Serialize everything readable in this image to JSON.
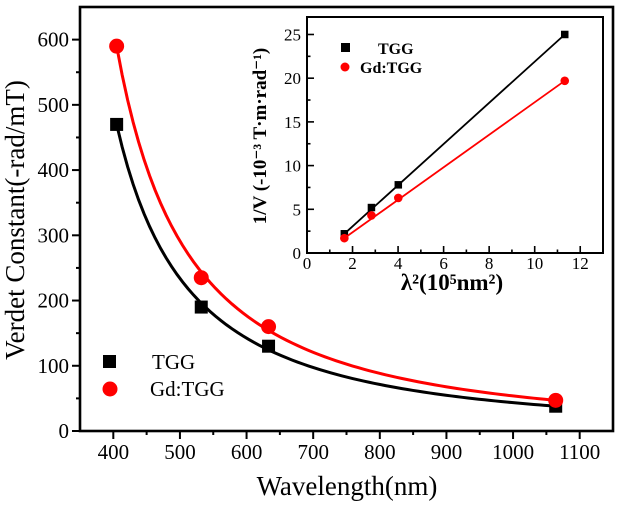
{
  "figure": {
    "background": "#ffffff",
    "series_black": "#000000",
    "series_red": "#ff0000"
  },
  "chart_data": [
    {
      "id": "main",
      "type": "scatter",
      "title": "",
      "xlabel": "Wavelength(nm)",
      "ylabel": "Verdet Constant(-rad/mT)",
      "xlim": [
        350,
        1150
      ],
      "ylim": [
        0,
        650
      ],
      "xticks": [
        400,
        500,
        600,
        700,
        800,
        900,
        1000,
        1100
      ],
      "yticks": [
        0,
        100,
        200,
        300,
        400,
        500,
        600
      ],
      "minor_x_step": 50,
      "minor_y_step": 50,
      "grid": false,
      "legend_position": "lower-left",
      "series": [
        {
          "name": "TGG",
          "color": "#000000",
          "marker": "square",
          "fit": "hyperbolic",
          "x": [
            405,
            532,
            633,
            1064
          ],
          "y": [
            470,
            190,
            130,
            38
          ]
        },
        {
          "name": "Gd:TGG",
          "color": "#ff0000",
          "marker": "circle",
          "fit": "hyperbolic",
          "x": [
            405,
            532,
            633,
            1064
          ],
          "y": [
            590,
            235,
            160,
            47
          ]
        }
      ]
    },
    {
      "id": "inset",
      "type": "scatter",
      "title": "",
      "xlabel": "λ²(10⁵nm²)",
      "ylabel": "1/V (-10⁻³ T·m·rad⁻¹)",
      "xlim": [
        0,
        13
      ],
      "ylim": [
        0,
        27
      ],
      "xticks": [
        0,
        2,
        4,
        6,
        8,
        10,
        12
      ],
      "yticks": [
        0,
        5,
        10,
        15,
        20,
        25
      ],
      "minor_x_step": 1,
      "minor_y_step": 2.5,
      "grid": false,
      "legend_position": "upper-left",
      "series": [
        {
          "name": "TGG",
          "color": "#000000",
          "marker": "square",
          "fit": "linear",
          "x": [
            1.64,
            2.83,
            4.01,
            11.32
          ],
          "y": [
            2.2,
            5.2,
            7.8,
            25.0
          ]
        },
        {
          "name": "Gd:TGG",
          "color": "#ff0000",
          "marker": "circle",
          "fit": "linear",
          "x": [
            1.64,
            2.83,
            4.01,
            11.32
          ],
          "y": [
            1.7,
            4.3,
            6.3,
            19.7
          ]
        }
      ]
    }
  ]
}
